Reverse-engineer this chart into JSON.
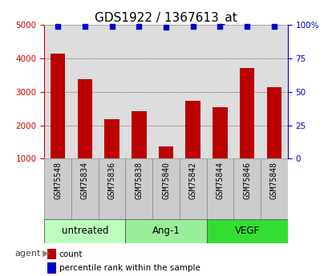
{
  "title": "GDS1922 / 1367613_at",
  "samples": [
    "GSM75548",
    "GSM75834",
    "GSM75836",
    "GSM75838",
    "GSM75840",
    "GSM75842",
    "GSM75844",
    "GSM75846",
    "GSM75848"
  ],
  "counts": [
    4150,
    3370,
    2180,
    2420,
    1360,
    2730,
    2530,
    3700,
    3130
  ],
  "percentiles": [
    99,
    99,
    99,
    99,
    98,
    99,
    99,
    99,
    99
  ],
  "groups": [
    {
      "label": "untreated",
      "start": 0,
      "end": 3,
      "color": "#bbffbb"
    },
    {
      "label": "Ang-1",
      "start": 3,
      "end": 6,
      "color": "#99ee99"
    },
    {
      "label": "VEGF",
      "start": 6,
      "end": 9,
      "color": "#33dd33"
    }
  ],
  "bar_color": "#bb0000",
  "dot_color": "#0000cc",
  "left_axis_color": "#cc0000",
  "right_axis_color": "#0000cc",
  "ylim_left": [
    1000,
    5000
  ],
  "ylim_right": [
    0,
    100
  ],
  "yticks_left": [
    1000,
    2000,
    3000,
    4000,
    5000
  ],
  "yticks_right": [
    0,
    25,
    50,
    75,
    100
  ],
  "background_color": "#ffffff",
  "plot_bg_color": "#dddddd",
  "sample_cell_color": "#cccccc",
  "title_fontsize": 11,
  "tick_fontsize": 7.5,
  "sample_fontsize": 7,
  "group_fontsize": 8.5,
  "legend_fontsize": 7.5,
  "agent_fontsize": 8
}
